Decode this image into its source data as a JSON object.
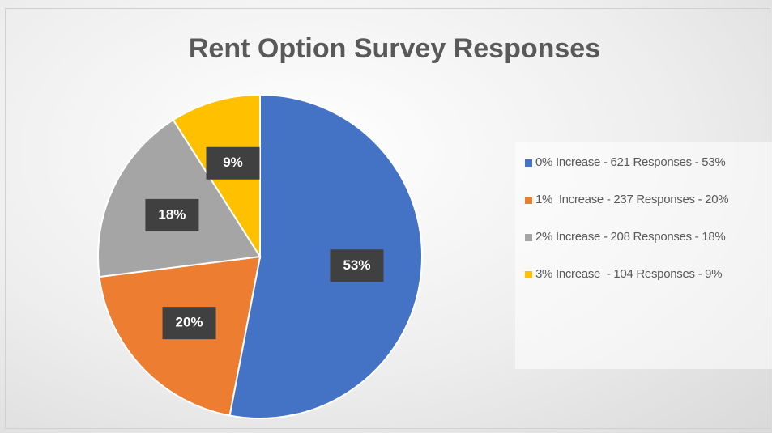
{
  "chart_data": {
    "type": "pie",
    "title": "Rent Option Survey Responses",
    "labels": [
      "0% Increase - 621 Responses - 53%",
      "1%  Increase - 237 Responses - 20%",
      "2% Increase - 208 Responses - 18%",
      "3% Increase  - 104 Responses - 9%"
    ],
    "values": [
      53,
      20,
      18,
      9
    ],
    "value_labels": [
      "53%",
      "20%",
      "18%",
      "9%"
    ],
    "colors": [
      "#4472c4",
      "#ed7d31",
      "#a5a5a5",
      "#ffc000"
    ],
    "legend": "right"
  }
}
